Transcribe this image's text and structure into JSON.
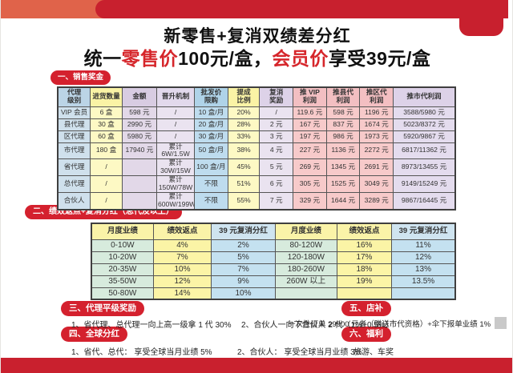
{
  "header": {
    "title_line1": "新零售+复消双绩差分红",
    "line2_prefix": "统一",
    "line2_red1": "零售价",
    "line2_mid": "100元/盒，",
    "line2_red2": "会员价",
    "line2_suffix": "享受39元/盒"
  },
  "sections": {
    "s1_badge": "一、销售奖金",
    "s2_badge": "二、绩效返点+复消分红（总代及以上）",
    "s3_badge": "三、代理平级奖励",
    "s4_badge": "四、全球分红",
    "s5_badge": "五、店补",
    "s6_badge": "六、福利",
    "s3_item1": "1、省代理、总代理一向上高一级拿 1 代 30%",
    "s3_item2": "2、合伙人一向下合伙人 2 代（1%+0.5%）",
    "s4_item1": "1、省代、总代： 享受全球当月业绩 5%",
    "s4_item2": "2、合伙人： 享受全球当月业绩 3%",
    "s5_text": "一次性订单 29900 元者（赠送市代资格）+伞下报单业绩 1%",
    "s6_text": "旅游、车奖"
  },
  "colors": {
    "orange": "#e0634a",
    "banner_red": "#c8202e",
    "badge_red": "#d4212e",
    "accent_text_red": "#d6262b"
  },
  "chart_data": [
    {
      "type": "table",
      "title": "销售奖金",
      "headers": [
        "代理\n级别",
        "进货数量",
        "金额",
        "晋升机制",
        "批发价\n限购",
        "提成\n比例",
        "复消\n奖励",
        "推 VIP\n利润",
        "推县代\n利润",
        "推区代\n利润",
        "推市代利润"
      ],
      "rows": [
        [
          "VIP 会员",
          "6 盒",
          "598 元",
          "/",
          "10 盒/月",
          "20%",
          "/",
          "119.6 元",
          "598 元",
          "1196 元",
          "3588/5980 元"
        ],
        [
          "县代理",
          "30 盒",
          "2990 元",
          "/",
          "20 盒/月",
          "28%",
          "2 元",
          "167 元",
          "837 元",
          "1674 元",
          "5023/8372 元"
        ],
        [
          "区代理",
          "60 盒",
          "5980 元",
          "/",
          "30 盒/月",
          "33%",
          "3 元",
          "197 元",
          "986 元",
          "1973 元",
          "5920/9867 元"
        ],
        [
          "市代理",
          "180 盒",
          "17940 元",
          "累计\n6W/1.5W",
          "50 盒/月",
          "38%",
          "4 元",
          "227 元",
          "1136 元",
          "2272 元",
          "6817/11362 元"
        ],
        [
          "省代理",
          "/",
          "",
          "累计\n30W/15W",
          "100 盒/月",
          "45%",
          "5 元",
          "269 元",
          "1345 元",
          "2691 元",
          "8973/13455 元"
        ],
        [
          "总代理",
          "/",
          "",
          "累计\n150W/78W",
          "不限",
          "51%",
          "6 元",
          "305 元",
          "1525 元",
          "3049 元",
          "9149/15249 元"
        ],
        [
          "合伙人",
          "/",
          "",
          "累计\n600W/199W",
          "不限",
          "55%",
          "7 元",
          "329 元",
          "1644 元",
          "3289 元",
          "9867/16445 元"
        ]
      ]
    },
    {
      "type": "table",
      "title": "绩效返点+复消分红（总代及以上）",
      "headers": [
        "月度业绩",
        "绩效返点",
        "39 元复消分红",
        "月度业绩",
        "绩效返点",
        "39 元复消分红"
      ],
      "rows": [
        [
          "0-10W",
          "4%",
          "2%",
          "80-120W",
          "16%",
          "11%"
        ],
        [
          "10-20W",
          "7%",
          "5%",
          "120-180W",
          "17%",
          "12%"
        ],
        [
          "20-35W",
          "10%",
          "7%",
          "180-260W",
          "18%",
          "13%"
        ],
        [
          "35-50W",
          "12%",
          "9%",
          "260W 以上",
          "19%",
          "13.5%"
        ],
        [
          "50-80W",
          "14%",
          "10%",
          "",
          "",
          ""
        ]
      ]
    }
  ]
}
